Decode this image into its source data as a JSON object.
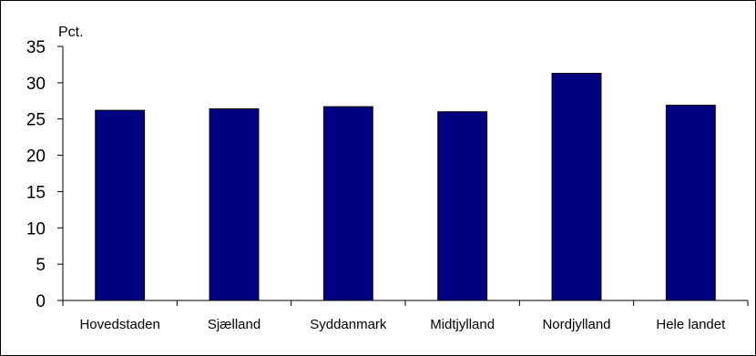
{
  "chart_data": {
    "type": "bar",
    "categories": [
      "Hovedstaden",
      "Sjælland",
      "Syddanmark",
      "Midtjylland",
      "Nordjylland",
      "Hele landet"
    ],
    "values": [
      26.2,
      26.4,
      26.7,
      26.0,
      31.3,
      26.9
    ],
    "ylabel": "Pct.",
    "ylim": [
      0,
      35
    ],
    "yticks": [
      0,
      5,
      10,
      15,
      20,
      25,
      30,
      35
    ],
    "bar_color": "#000080",
    "grid": false,
    "legend": "none"
  }
}
